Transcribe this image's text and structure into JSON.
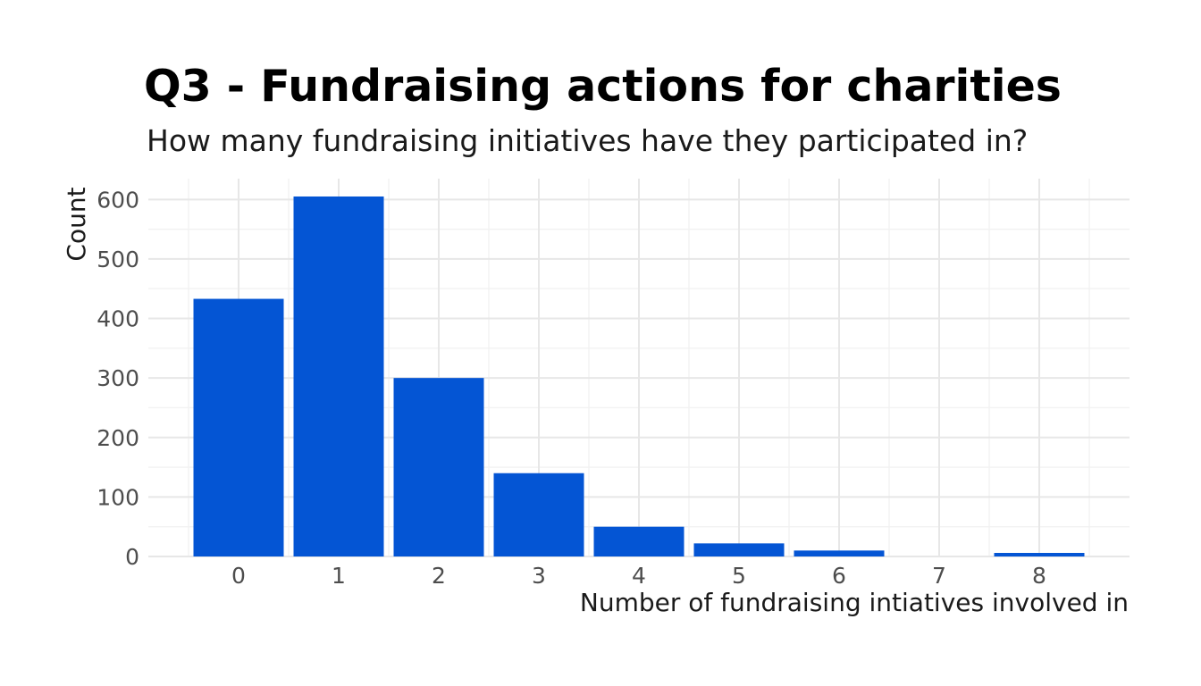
{
  "chart_data": {
    "type": "bar",
    "title": "Q3 - Fundraising actions for charities",
    "subtitle": "How many fundraising initiatives have they participated in?",
    "xlabel": "Number of fundraising intiatives involved in",
    "ylabel": "Count",
    "categories": [
      "0",
      "1",
      "2",
      "3",
      "4",
      "5",
      "6",
      "7",
      "8"
    ],
    "values": [
      433,
      605,
      300,
      140,
      50,
      22,
      10,
      0,
      6
    ],
    "yticks": [
      0,
      100,
      200,
      300,
      400,
      500,
      600
    ],
    "ylim": [
      0,
      635
    ],
    "minor_tick_step": 50,
    "grid": "major+minor",
    "legend_position": "none",
    "bar_color": "#0455d4",
    "grid_major_color": "#e7e7e7",
    "grid_minor_color": "#f2f2f2",
    "tick_label_color": "#4d4d4d",
    "axis_title_color": "#1a1a1a"
  }
}
